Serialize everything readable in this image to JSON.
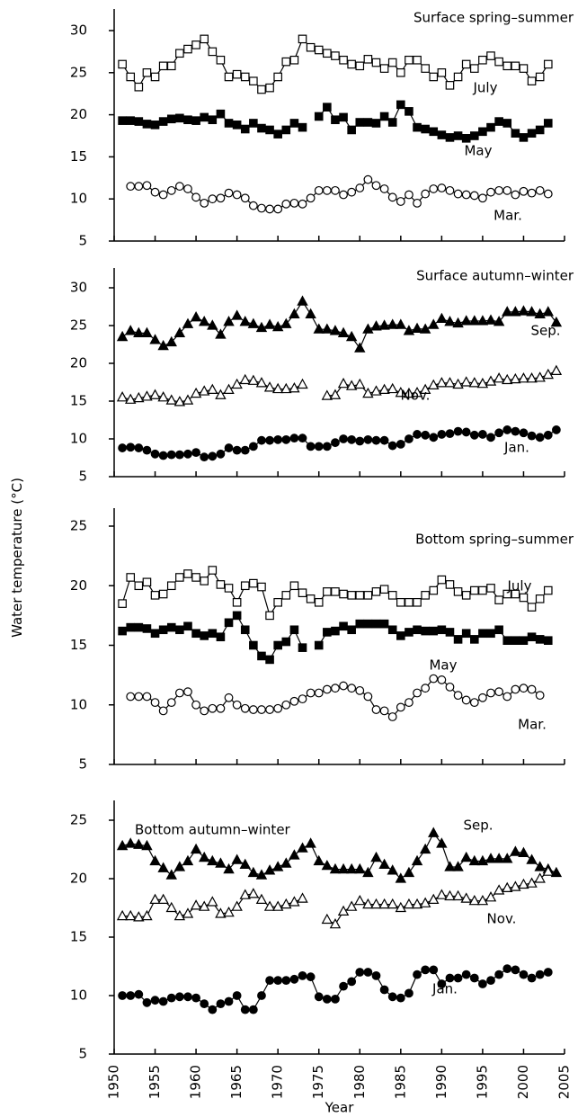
{
  "ylabel": "Water temperature (°C)",
  "chart_data": [
    {
      "type": "line",
      "title": "Surface spring–summer",
      "x": [
        1951,
        1952,
        1953,
        1954,
        1955,
        1956,
        1957,
        1958,
        1959,
        1960,
        1961,
        1962,
        1963,
        1964,
        1965,
        1966,
        1967,
        1968,
        1969,
        1970,
        1971,
        1972,
        1973,
        1974,
        1975,
        1976,
        1977,
        1978,
        1979,
        1980,
        1981,
        1982,
        1983,
        1984,
        1985,
        1986,
        1987,
        1988,
        1989,
        1990,
        1991,
        1992,
        1993,
        1994,
        1995,
        1996,
        1997,
        1998,
        1999,
        2000,
        2001,
        2002,
        2003,
        2004
      ],
      "xlim": [
        1950,
        2005
      ],
      "xticks": [
        1950,
        1955,
        1960,
        1965,
        1970,
        1975,
        1980,
        1985,
        1990,
        1995,
        2000,
        2005
      ],
      "ylim": [
        5,
        30
      ],
      "yticks": [
        5,
        10,
        15,
        20,
        25,
        30
      ],
      "series": [
        {
          "name": "July",
          "color": "#000000",
          "marker": "square-open",
          "values": [
            26,
            24.5,
            23.3,
            25,
            24.5,
            25.8,
            25.8,
            27.3,
            27.8,
            28.3,
            29,
            27.5,
            26.5,
            24.5,
            24.8,
            24.5,
            24,
            23,
            23.2,
            24.5,
            26.3,
            26.5,
            29,
            28,
            27.7,
            27.3,
            27,
            26.5,
            26,
            25.8,
            26.6,
            26.2,
            25.5,
            26.2,
            25,
            26.5,
            26.5,
            25.5,
            24.5,
            25,
            23.5,
            24.5,
            26,
            25.5,
            26.5,
            27,
            26.3,
            25.8,
            25.8,
            25.5,
            24,
            24.5,
            26,
            null
          ]
        },
        {
          "name": "May",
          "color": "#000000",
          "marker": "square-filled",
          "values": [
            19.3,
            19.3,
            19.2,
            18.9,
            18.8,
            19.2,
            19.5,
            19.6,
            19.4,
            19.3,
            19.7,
            19.4,
            20.1,
            19,
            18.8,
            18.3,
            19,
            18.4,
            18.2,
            17.7,
            18.2,
            19,
            18.5,
            null,
            19.8,
            20.9,
            19.4,
            19.7,
            18.2,
            19.1,
            19.1,
            19,
            19.8,
            19.1,
            21.2,
            20.4,
            18.5,
            18.3,
            18,
            17.6,
            17.3,
            17.5,
            17.2,
            17.5,
            18,
            18.5,
            19.2,
            19,
            17.8,
            17.3,
            17.8,
            18.2,
            19,
            null
          ]
        },
        {
          "name": "Mar.",
          "color": "#000000",
          "marker": "circle-open",
          "values": [
            null,
            11.5,
            11.5,
            11.6,
            10.8,
            10.5,
            11,
            11.5,
            11.2,
            10.2,
            9.5,
            10,
            10.1,
            10.7,
            10.5,
            10.1,
            9.2,
            8.9,
            8.8,
            8.8,
            9.4,
            9.5,
            9.4,
            10.1,
            11,
            11,
            11,
            10.5,
            10.8,
            11.3,
            12.3,
            11.6,
            11.2,
            10.2,
            9.7,
            10.5,
            9.5,
            10.6,
            11.2,
            11.3,
            11,
            10.6,
            10.5,
            10.4,
            10.1,
            10.8,
            11,
            11,
            10.5,
            10.9,
            10.7,
            11,
            10.6,
            null
          ]
        }
      ]
    },
    {
      "type": "line",
      "title": "Surface autumn–winter",
      "x": [
        1951,
        1952,
        1953,
        1954,
        1955,
        1956,
        1957,
        1958,
        1959,
        1960,
        1961,
        1962,
        1963,
        1964,
        1965,
        1966,
        1967,
        1968,
        1969,
        1970,
        1971,
        1972,
        1973,
        1974,
        1975,
        1976,
        1977,
        1978,
        1979,
        1980,
        1981,
        1982,
        1983,
        1984,
        1985,
        1986,
        1987,
        1988,
        1989,
        1990,
        1991,
        1992,
        1993,
        1994,
        1995,
        1996,
        1997,
        1998,
        1999,
        2000,
        2001,
        2002,
        2003,
        2004
      ],
      "xlim": [
        1950,
        2005
      ],
      "xticks": [
        1950,
        1955,
        1960,
        1965,
        1970,
        1975,
        1980,
        1985,
        1990,
        1995,
        2000,
        2005
      ],
      "ylim": [
        5,
        30
      ],
      "yticks": [
        5,
        10,
        15,
        20,
        25,
        30
      ],
      "series": [
        {
          "name": "Sep.",
          "color": "#000000",
          "marker": "triangle-filled",
          "values": [
            23.5,
            24.3,
            24,
            24,
            23.1,
            22.3,
            22.8,
            24,
            25.2,
            26.1,
            25.5,
            25,
            23.8,
            25.5,
            26.3,
            25.5,
            25.2,
            24.7,
            25.1,
            24.8,
            25.2,
            26.5,
            28.2,
            26.5,
            24.5,
            24.5,
            24.3,
            24,
            23.5,
            22,
            24.5,
            24.9,
            25,
            25.1,
            25.1,
            24.3,
            24.6,
            24.5,
            25.1,
            25.9,
            25.5,
            25.3,
            25.6,
            25.6,
            25.6,
            25.7,
            25.5,
            26.8,
            26.8,
            26.9,
            26.8,
            26.5,
            26.8,
            25.4
          ]
        },
        {
          "name": "Nov.",
          "color": "#000000",
          "marker": "triangle-open",
          "values": [
            15.5,
            15.2,
            15.4,
            15.6,
            15.8,
            15.5,
            15.1,
            14.9,
            15.1,
            16,
            16.3,
            16.5,
            15.8,
            16.5,
            17.2,
            17.8,
            17.7,
            17.4,
            16.8,
            16.6,
            16.6,
            16.7,
            17.2,
            null,
            null,
            15.7,
            15.8,
            17.3,
            17,
            17.2,
            16,
            16.3,
            16.5,
            16.6,
            16.1,
            16,
            16.1,
            16.5,
            17.1,
            17.4,
            17.4,
            17.2,
            17.5,
            17.4,
            17.3,
            17.6,
            18,
            17.8,
            17.9,
            18,
            18,
            18.1,
            18.5,
            19
          ]
        },
        {
          "name": "Jan.",
          "color": "#000000",
          "marker": "circle-filled",
          "values": [
            8.8,
            8.9,
            8.8,
            8.5,
            8,
            7.8,
            7.9,
            7.9,
            8,
            8.2,
            7.6,
            7.7,
            8,
            8.8,
            8.5,
            8.5,
            9,
            9.8,
            9.8,
            9.9,
            9.9,
            10.1,
            10.1,
            9,
            9,
            9,
            9.5,
            10,
            9.9,
            9.7,
            9.9,
            9.8,
            9.8,
            9.1,
            9.3,
            10,
            10.6,
            10.5,
            10.2,
            10.6,
            10.7,
            11,
            10.9,
            10.5,
            10.6,
            10.2,
            10.8,
            11.2,
            11,
            10.8,
            10.4,
            10.2,
            10.5,
            11.2
          ]
        }
      ]
    },
    {
      "type": "line",
      "title": "Bottom spring–summer",
      "x": [
        1951,
        1952,
        1953,
        1954,
        1955,
        1956,
        1957,
        1958,
        1959,
        1960,
        1961,
        1962,
        1963,
        1964,
        1965,
        1966,
        1967,
        1968,
        1969,
        1970,
        1971,
        1972,
        1973,
        1974,
        1975,
        1976,
        1977,
        1978,
        1979,
        1980,
        1981,
        1982,
        1983,
        1984,
        1985,
        1986,
        1987,
        1988,
        1989,
        1990,
        1991,
        1992,
        1993,
        1994,
        1995,
        1996,
        1997,
        1998,
        1999,
        2000,
        2001,
        2002,
        2003,
        2004
      ],
      "xlim": [
        1950,
        2005
      ],
      "xticks": [
        1950,
        1955,
        1960,
        1965,
        1970,
        1975,
        1980,
        1985,
        1990,
        1995,
        2000,
        2005
      ],
      "ylim": [
        5,
        25
      ],
      "yticks": [
        5,
        10,
        15,
        20,
        25
      ],
      "series": [
        {
          "name": "July",
          "color": "#000000",
          "marker": "square-open",
          "values": [
            18.5,
            20.7,
            20,
            20.3,
            19.2,
            19.3,
            20,
            20.7,
            21,
            20.7,
            20.4,
            21.3,
            20.1,
            19.8,
            18.6,
            20,
            20.2,
            19.9,
            17.5,
            18.6,
            19.2,
            20,
            19.4,
            18.9,
            18.6,
            19.5,
            19.5,
            19.3,
            19.2,
            19.2,
            19.2,
            19.5,
            19.7,
            19.2,
            18.6,
            18.6,
            18.6,
            19.2,
            19.6,
            20.5,
            20.1,
            19.5,
            19.2,
            19.6,
            19.6,
            19.8,
            18.8,
            19.3,
            19.3,
            19,
            18.2,
            18.9,
            19.6,
            null
          ]
        },
        {
          "name": "May",
          "color": "#000000",
          "marker": "square-filled",
          "values": [
            16.2,
            16.5,
            16.5,
            16.4,
            16,
            16.3,
            16.5,
            16.3,
            16.6,
            16,
            15.8,
            16,
            15.7,
            16.9,
            17.5,
            16.3,
            15,
            14.1,
            13.8,
            15,
            15.3,
            16.3,
            14.8,
            null,
            15,
            16.1,
            16.2,
            16.6,
            16.3,
            16.8,
            16.8,
            16.8,
            16.8,
            16.3,
            15.8,
            16.1,
            16.3,
            16.2,
            16.2,
            16.3,
            16.1,
            15.5,
            16,
            15.5,
            16,
            16,
            16.3,
            15.4,
            15.4,
            15.4,
            15.7,
            15.5,
            15.4,
            null
          ]
        },
        {
          "name": "Mar.",
          "color": "#000000",
          "marker": "circle-open",
          "values": [
            null,
            10.7,
            10.7,
            10.7,
            10.2,
            9.5,
            10.2,
            11,
            11.1,
            10,
            9.5,
            9.7,
            9.7,
            10.6,
            10,
            9.7,
            9.6,
            9.6,
            9.6,
            9.7,
            10,
            10.3,
            10.5,
            11,
            11,
            11.3,
            11.4,
            11.6,
            11.4,
            11.2,
            10.7,
            9.6,
            9.5,
            9,
            9.8,
            10.2,
            11,
            11.4,
            12.2,
            12.1,
            11.5,
            10.8,
            10.4,
            10.2,
            10.6,
            11,
            11.1,
            10.7,
            11.3,
            11.4,
            11.3,
            10.8,
            null,
            null
          ]
        }
      ]
    },
    {
      "type": "line",
      "title": "Bottom autumn–winter",
      "xlabel": "Year",
      "x": [
        1951,
        1952,
        1953,
        1954,
        1955,
        1956,
        1957,
        1958,
        1959,
        1960,
        1961,
        1962,
        1963,
        1964,
        1965,
        1966,
        1967,
        1968,
        1969,
        1970,
        1971,
        1972,
        1973,
        1974,
        1975,
        1976,
        1977,
        1978,
        1979,
        1980,
        1981,
        1982,
        1983,
        1984,
        1985,
        1986,
        1987,
        1988,
        1989,
        1990,
        1991,
        1992,
        1993,
        1994,
        1995,
        1996,
        1997,
        1998,
        1999,
        2000,
        2001,
        2002,
        2003,
        2004
      ],
      "xlim": [
        1950,
        2005
      ],
      "xticks": [
        1950,
        1955,
        1960,
        1965,
        1970,
        1975,
        1980,
        1985,
        1990,
        1995,
        2000,
        2005
      ],
      "ylim": [
        5,
        25
      ],
      "yticks": [
        5,
        10,
        15,
        20,
        25
      ],
      "series": [
        {
          "name": "Sep.",
          "color": "#000000",
          "marker": "triangle-filled",
          "values": [
            22.8,
            23,
            22.9,
            22.8,
            21.5,
            20.9,
            20.3,
            21,
            21.5,
            22.5,
            21.8,
            21.5,
            21.3,
            20.8,
            21.6,
            21.2,
            20.5,
            20.3,
            20.7,
            21,
            21.3,
            22,
            22.6,
            23,
            21.5,
            21.1,
            20.8,
            20.8,
            20.8,
            20.8,
            20.5,
            21.8,
            21.2,
            20.7,
            20,
            20.5,
            21.5,
            22.5,
            23.9,
            23,
            21,
            21,
            21.8,
            21.5,
            21.5,
            21.7,
            21.7,
            21.7,
            22.3,
            22.2,
            21.6,
            21,
            20.8,
            20.5
          ]
        },
        {
          "name": "Nov.",
          "color": "#000000",
          "marker": "triangle-open",
          "values": [
            16.8,
            16.8,
            16.7,
            16.8,
            18.2,
            18.2,
            17.5,
            16.8,
            17,
            17.7,
            17.6,
            18,
            17,
            17.1,
            17.6,
            18.6,
            18.7,
            18.2,
            17.6,
            17.6,
            17.8,
            18,
            18.3,
            null,
            null,
            16.5,
            16.1,
            17.2,
            17.6,
            18.1,
            17.8,
            17.8,
            17.8,
            17.8,
            17.5,
            17.8,
            17.8,
            17.9,
            18.2,
            18.6,
            18.5,
            18.5,
            18.3,
            18.1,
            18.1,
            18.4,
            19,
            19.2,
            19.3,
            19.5,
            19.6,
            20,
            20.6,
            null
          ]
        },
        {
          "name": "Jan.",
          "color": "#000000",
          "marker": "circle-filled",
          "values": [
            10,
            10,
            10.1,
            9.4,
            9.6,
            9.5,
            9.8,
            9.9,
            9.9,
            9.8,
            9.3,
            8.8,
            9.3,
            9.5,
            10,
            8.8,
            8.8,
            10,
            11.3,
            11.3,
            11.3,
            11.4,
            11.7,
            11.6,
            9.9,
            9.7,
            9.7,
            10.8,
            11.2,
            12,
            12,
            11.7,
            10.5,
            9.9,
            9.8,
            10.2,
            11.8,
            12.2,
            12.2,
            11,
            11.5,
            11.5,
            11.8,
            11.5,
            11,
            11.3,
            11.8,
            12.3,
            12.2,
            11.8,
            11.5,
            11.8,
            12,
            null
          ]
        }
      ]
    }
  ]
}
